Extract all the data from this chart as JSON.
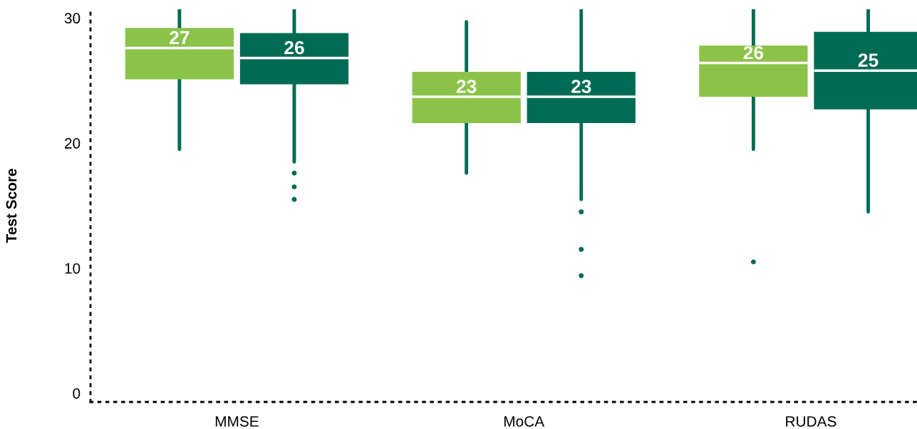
{
  "chart_data": {
    "type": "box",
    "ylabel": "Test Score",
    "categories": [
      "MMSE",
      "MoCA",
      "RUDAS"
    ],
    "ylim": [
      -0.7,
      30.7
    ],
    "yticks": [
      0,
      10,
      20,
      30
    ],
    "grid": false,
    "legend": false,
    "series": [
      {
        "color": "#8bc34a",
        "value_labels": [
          "27",
          "23",
          "26"
        ],
        "boxes": [
          {
            "low": 19.5,
            "q1": 25.1,
            "median": 27.6,
            "q3": 29.2,
            "high": 30.7
          },
          {
            "low": 17.6,
            "q1": 21.6,
            "median": 23.7,
            "q3": 25.7,
            "high": 29.7
          },
          {
            "low": 19.5,
            "q1": 23.7,
            "median": 26.4,
            "q3": 27.8,
            "high": 30.7,
            "outliers": [
              10.5
            ]
          }
        ]
      },
      {
        "color": "#006b54",
        "value_labels": [
          "26",
          "23",
          "25"
        ],
        "boxes": [
          {
            "low": 18.5,
            "q1": 24.7,
            "median": 26.8,
            "q3": 28.8,
            "high": 30.7,
            "outliers": [
              17.6,
              16.5,
              15.5
            ]
          },
          {
            "low": 15.5,
            "q1": 21.6,
            "median": 23.7,
            "q3": 25.7,
            "high": 30.7,
            "outliers": [
              14.5,
              11.5,
              9.4
            ]
          },
          {
            "low": 14.5,
            "q1": 22.7,
            "median": 25.8,
            "q3": 28.9,
            "high": 30.7
          }
        ]
      }
    ]
  }
}
